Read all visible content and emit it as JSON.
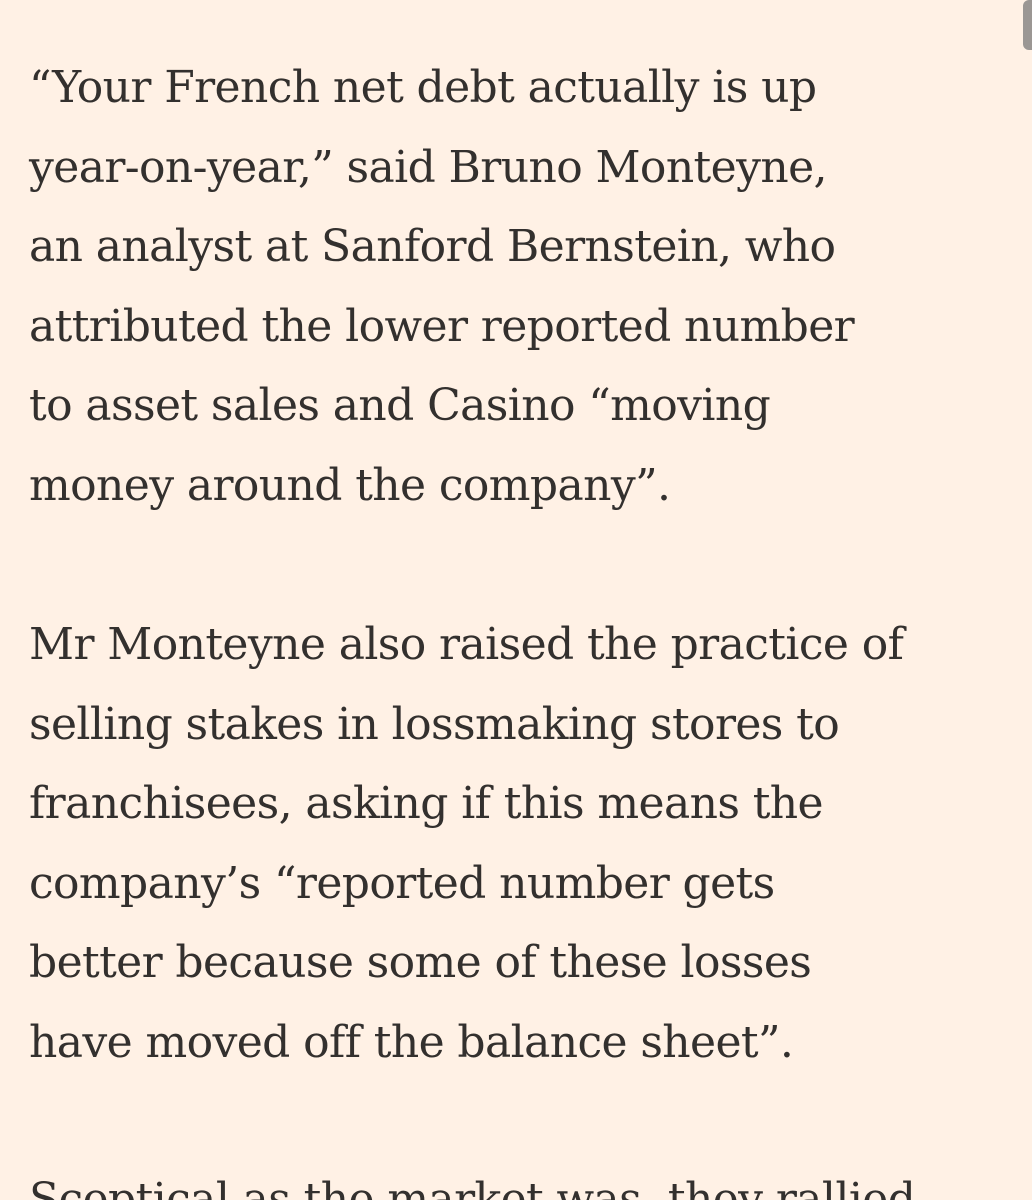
{
  "article": {
    "paragraphs": [
      {
        "lines": [
          "“Your French net debt actually is up",
          "year-on-year,” said Bruno Monteyne,",
          "an analyst at Sanford Bernstein, who",
          "attributed the lower reported number",
          "to asset sales and Casino “moving",
          "money around the company”."
        ]
      },
      {
        "lines": [
          "Mr Monteyne also raised the practice of",
          "selling stakes in lossmaking stores to",
          "franchisees, asking if this means the",
          "company’s “reported number gets",
          "better because some of these losses",
          "have moved off the balance sheet”."
        ]
      }
    ],
    "cut_line": "Sceptical as the market was, they rallied"
  }
}
